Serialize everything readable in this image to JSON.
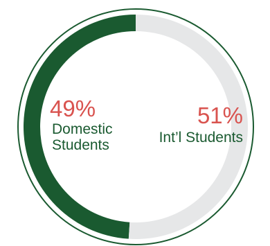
{
  "chart_data": {
    "type": "pie",
    "style": "donut",
    "categories": [
      "Domestic Students",
      "Int’l Students"
    ],
    "values": [
      49,
      51
    ],
    "slices": [
      {
        "percent_label": "49%",
        "label_lines": [
          "Domestic",
          "Students"
        ],
        "value": 49,
        "color": "#1a5a30"
      },
      {
        "percent_label": "51%",
        "label_lines": [
          "Int’l Students"
        ],
        "value": 51,
        "color": "#e6e7e8"
      }
    ],
    "colors": {
      "percent_text": "#d9534f",
      "label_text": "#1a5a30",
      "outer_ring": "#1a5a30"
    }
  }
}
